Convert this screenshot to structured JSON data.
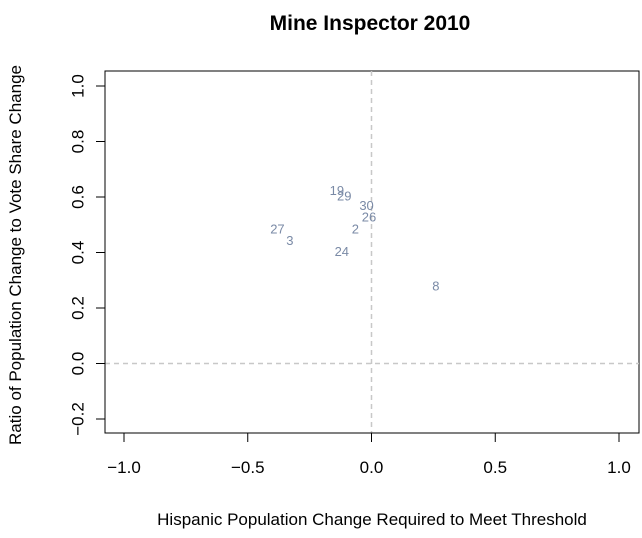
{
  "chart_data": {
    "type": "scatter",
    "title": "Mine Inspector 2010",
    "xlabel": "Hispanic Population Change Required to Meet Threshold",
    "ylabel": "Ratio of Population Change to Vote Share Change",
    "xlim": [
      -1.0,
      1.0
    ],
    "ylim": [
      -0.2,
      1.0
    ],
    "x_ticks": [
      "−1.0",
      "−0.5",
      "0.0",
      "0.5",
      "1.0"
    ],
    "y_ticks": [
      "−0.2",
      "0.0",
      "0.2",
      "0.4",
      "0.6",
      "0.8",
      "1.0"
    ],
    "reference_lines": {
      "x": 0,
      "y": 0,
      "style": "dashed",
      "color": "#c8c8c8"
    },
    "point_color": "#7a8aa6",
    "points": [
      {
        "label": "19",
        "x": -0.14,
        "y": 0.62
      },
      {
        "label": "29",
        "x": -0.11,
        "y": 0.6
      },
      {
        "label": "30",
        "x": -0.02,
        "y": 0.565
      },
      {
        "label": "26",
        "x": -0.01,
        "y": 0.525
      },
      {
        "label": "2",
        "x": -0.065,
        "y": 0.48
      },
      {
        "label": "27",
        "x": -0.38,
        "y": 0.48
      },
      {
        "label": "3",
        "x": -0.33,
        "y": 0.44
      },
      {
        "label": "24",
        "x": -0.12,
        "y": 0.4
      },
      {
        "label": "8",
        "x": 0.26,
        "y": 0.275
      }
    ]
  }
}
